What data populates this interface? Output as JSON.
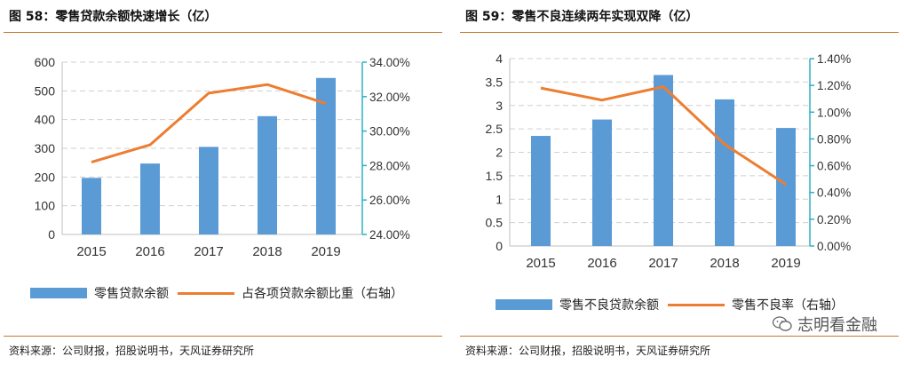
{
  "left": {
    "title": "图 58：零售贷款余额快速增长（亿）",
    "source": "资料来源：公司财报，招股说明书，天风证券研究所",
    "legend": {
      "bar": "零售贷款余额",
      "line": "占各项贷款余额比重（右轴）"
    }
  },
  "right": {
    "title": "图 59：零售不良连续两年实现双降（亿）",
    "source": "资料来源：公司财报，招股说明书，天风证券研究所",
    "legend": {
      "bar": "零售不良贷款余额",
      "line": "零售不良率（右轴）"
    }
  },
  "watermark": {
    "text": "志明看金融",
    "icon": "wechat-icon"
  },
  "colors": {
    "bar": "#5b9bd5",
    "line": "#ed7d31",
    "rule": "#c97a2f",
    "axis_right": "#2ab0c5"
  },
  "chart_data": [
    {
      "type": "bar",
      "categories": [
        "2015",
        "2016",
        "2017",
        "2018",
        "2019"
      ],
      "series": [
        {
          "name": "零售贷款余额",
          "type": "bar",
          "axis": "left",
          "values": [
            197,
            247,
            305,
            412,
            545
          ]
        },
        {
          "name": "占各项贷款余额比重（右轴）",
          "type": "line",
          "axis": "right",
          "values": [
            28.2,
            29.2,
            32.2,
            32.7,
            31.6
          ]
        }
      ],
      "ylim": [
        0,
        600
      ],
      "yticks": [
        "0",
        "100",
        "200",
        "300",
        "400",
        "500",
        "600"
      ],
      "y2lim": [
        24,
        34
      ],
      "y2ticks": [
        "24.00%",
        "26.00%",
        "28.00%",
        "30.00%",
        "32.00%",
        "34.00%"
      ],
      "grid": true,
      "legend_position": "bottom"
    },
    {
      "type": "bar",
      "categories": [
        "2015",
        "2016",
        "2017",
        "2018",
        "2019"
      ],
      "series": [
        {
          "name": "零售不良贷款余额",
          "type": "bar",
          "axis": "left",
          "values": [
            2.35,
            2.7,
            3.65,
            3.13,
            2.52
          ]
        },
        {
          "name": "零售不良率（右轴）",
          "type": "line",
          "axis": "right",
          "values": [
            1.18,
            1.09,
            1.19,
            0.76,
            0.46
          ]
        }
      ],
      "ylim": [
        0,
        4
      ],
      "yticks": [
        "0",
        "0.5",
        "1",
        "1.5",
        "2",
        "2.5",
        "3",
        "3.5",
        "4"
      ],
      "y2lim": [
        0,
        1.4
      ],
      "y2ticks": [
        "0.00%",
        "0.20%",
        "0.40%",
        "0.60%",
        "0.80%",
        "1.00%",
        "1.20%",
        "1.40%"
      ],
      "grid": true,
      "legend_position": "bottom"
    }
  ]
}
